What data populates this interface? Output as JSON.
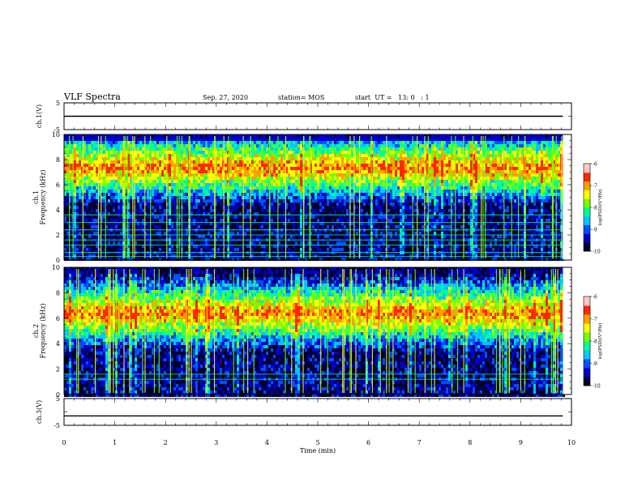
{
  "header": {
    "title": "VLF Spectra",
    "date": "Sep. 27, 2020",
    "station": "station= MOS",
    "start": "start  UT =   13: 0   : 1"
  },
  "colors": {
    "colormap": [
      "#00002a",
      "#0000c8",
      "#0050ff",
      "#00c8ff",
      "#00ff96",
      "#78ff00",
      "#ffff00",
      "#ffa000",
      "#ff2800",
      "#ffc8c8"
    ],
    "trace": "#000000",
    "hline": "#00ff96"
  },
  "chart_data": [
    {
      "type": "line",
      "panel": "waveform-ch1",
      "ylabel": "ch.1(V)",
      "ylim": [
        -5,
        5
      ],
      "yticks": [
        "5",
        "-5"
      ],
      "x": [
        0,
        9.83
      ],
      "y": [
        0,
        0
      ],
      "xlim": [
        0,
        10
      ]
    },
    {
      "type": "heatmap",
      "panel": "spectrogram-ch1",
      "ylabel": "ch.1\nFrequency (kHz)",
      "ylim": [
        0,
        10
      ],
      "yticks": [
        "0",
        "2",
        "4",
        "6",
        "8",
        "10"
      ],
      "xlim": [
        0,
        10
      ],
      "data_extent_min": 9.83,
      "intensity_peak_khz": [
        6.0,
        9.0
      ],
      "colorbar": {
        "label": "log(PSD)(V²/Hz)",
        "range": [
          -10,
          -6
        ],
        "ticks": [
          "-6",
          "-7",
          "-8",
          "-9",
          "-10"
        ]
      },
      "hlines_khz": [
        0.3,
        0.6,
        1.2,
        1.6,
        2.0,
        2.4,
        3.0,
        3.6
      ]
    },
    {
      "type": "heatmap",
      "panel": "spectrogram-ch2",
      "ylabel": "ch.2\nFrequency (kHz)",
      "ylim": [
        0,
        10
      ],
      "yticks": [
        "0",
        "2",
        "4",
        "6",
        "8",
        "10"
      ],
      "xlim": [
        0,
        10
      ],
      "data_extent_min": 9.83,
      "intensity_peak_khz": [
        5.0,
        8.0
      ],
      "colorbar": {
        "label": "log(PSD)(V²/Hz)",
        "range": [
          -10,
          -6
        ],
        "ticks": [
          "-6",
          "-7",
          "-8",
          "-9",
          "-10"
        ]
      },
      "hlines_khz": [
        1.2,
        1.6
      ]
    },
    {
      "type": "line",
      "panel": "waveform-ch3",
      "ylabel": "ch.3(V)",
      "ylim": [
        -5,
        5
      ],
      "yticks": [
        "5",
        "-5"
      ],
      "x": [
        0,
        9.83
      ],
      "y": [
        -1.5,
        -1.5
      ],
      "xlim": [
        0,
        10
      ],
      "xlabel": "Time  (min)",
      "xticks": [
        "0",
        "1",
        "2",
        "3",
        "4",
        "5",
        "6",
        "7",
        "8",
        "9",
        "10"
      ]
    }
  ]
}
